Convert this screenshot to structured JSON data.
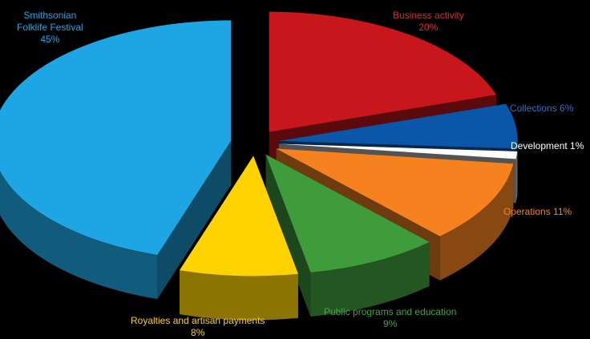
{
  "chart_data": {
    "type": "pie",
    "title": "",
    "slices": [
      {
        "label_lines": [
          "Business activity",
          "20%"
        ],
        "name": "Business activity",
        "value": 20,
        "color": "#c8161d",
        "label_color": "#e3262b"
      },
      {
        "label_lines": [
          "Collections 6%"
        ],
        "name": "Collections",
        "value": 6,
        "color": "#0a56a8",
        "label_color": "#2f6fc3"
      },
      {
        "label_lines": [
          "Development 1%"
        ],
        "name": "Development",
        "value": 1,
        "color": "#ffffff",
        "label_color": "#ffffff"
      },
      {
        "label_lines": [
          "Operations 11%"
        ],
        "name": "Operations",
        "value": 11,
        "color": "#f5821f",
        "label_color": "#f5821f"
      },
      {
        "label_lines": [
          "Public programs and education",
          "9%"
        ],
        "name": "Public programs and education",
        "value": 9,
        "color": "#3f9c3b",
        "label_color": "#3fa63a"
      },
      {
        "label_lines": [
          "Royalties and artisan payments",
          "8%"
        ],
        "name": "Royalties and artisan payments",
        "value": 8,
        "color": "#ffd200",
        "label_color": "#ffd200"
      },
      {
        "label_lines": [
          "Smithsonian",
          "Folklife Festival",
          "45%"
        ],
        "name": "Smithsonian Folklife Festival",
        "value": 45,
        "color": "#1ea6e4",
        "label_color": "#1ea6e4"
      }
    ]
  }
}
